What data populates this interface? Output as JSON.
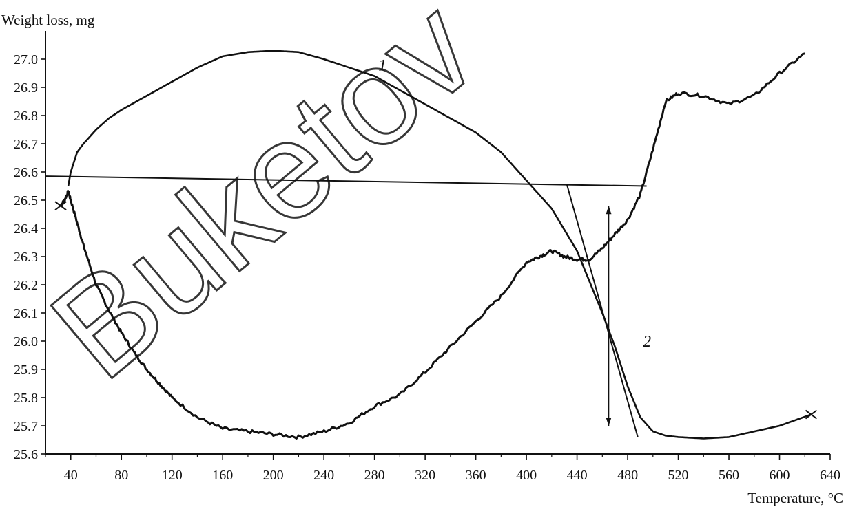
{
  "chart_data": {
    "type": "line",
    "title": "",
    "xlabel": "Temperature, °C",
    "ylabel": "Weight loss, mg",
    "xlim": [
      20,
      640
    ],
    "ylim": [
      25.6,
      27.1
    ],
    "x_ticks": [
      40,
      80,
      120,
      160,
      200,
      240,
      280,
      320,
      360,
      400,
      440,
      480,
      520,
      560,
      600,
      640
    ],
    "y_ticks": [
      "25.6",
      "25.7",
      "25.8",
      "25.9",
      "26.0",
      "26.1",
      "26.2",
      "26.3",
      "26.4",
      "26.5",
      "26.6",
      "26.7",
      "26.8",
      "26.9",
      "27.0"
    ],
    "grid": false,
    "series": [
      {
        "name": "1",
        "x": [
          38,
          40,
          45,
          50,
          60,
          70,
          80,
          100,
          120,
          140,
          160,
          180,
          200,
          220,
          240,
          260,
          280,
          300,
          320,
          340,
          360,
          380,
          400,
          420,
          440,
          460,
          470,
          480,
          490,
          500,
          510,
          520,
          540,
          560,
          580,
          600,
          625
        ],
        "y": [
          26.55,
          26.6,
          26.67,
          26.7,
          26.75,
          26.79,
          26.82,
          26.87,
          26.92,
          26.97,
          27.01,
          27.025,
          27.03,
          27.025,
          27.0,
          26.97,
          26.94,
          26.89,
          26.84,
          26.79,
          26.74,
          26.67,
          26.57,
          26.47,
          26.32,
          26.1,
          25.98,
          25.84,
          25.73,
          25.68,
          25.665,
          25.66,
          25.655,
          25.66,
          25.68,
          25.7,
          25.74
        ]
      },
      {
        "name": "2",
        "x": [
          32,
          35,
          38,
          40,
          45,
          50,
          60,
          70,
          80,
          90,
          100,
          110,
          120,
          140,
          160,
          180,
          200,
          220,
          240,
          260,
          280,
          300,
          320,
          340,
          360,
          380,
          400,
          410,
          420,
          430,
          440,
          450,
          460,
          470,
          480,
          490,
          500,
          510,
          520,
          540,
          560,
          580,
          600,
          620
        ],
        "y": [
          26.48,
          26.5,
          26.53,
          26.5,
          26.42,
          26.34,
          26.2,
          26.11,
          26.03,
          25.96,
          25.9,
          25.85,
          25.8,
          25.73,
          25.69,
          25.68,
          25.67,
          25.66,
          25.68,
          25.71,
          25.77,
          25.81,
          25.89,
          25.98,
          26.07,
          26.16,
          26.28,
          26.3,
          26.32,
          26.3,
          26.29,
          26.29,
          26.33,
          26.38,
          26.43,
          26.52,
          26.68,
          26.85,
          26.88,
          26.87,
          26.84,
          26.87,
          26.95,
          27.02
        ]
      }
    ],
    "annotations": [
      {
        "text": "1",
        "x": 283,
        "y": 26.96
      },
      {
        "text": "2",
        "x": 492,
        "y": 25.98
      }
    ],
    "reference_lines": [
      {
        "from": [
          20,
          26.585
        ],
        "to": [
          495,
          26.55
        ]
      },
      {
        "from": [
          432,
          26.555
        ],
        "to": [
          488,
          25.66
        ]
      }
    ],
    "double_arrow": {
      "x": 465,
      "y_from": 26.48,
      "y_to": 25.7
    },
    "watermark": "Buketov"
  }
}
